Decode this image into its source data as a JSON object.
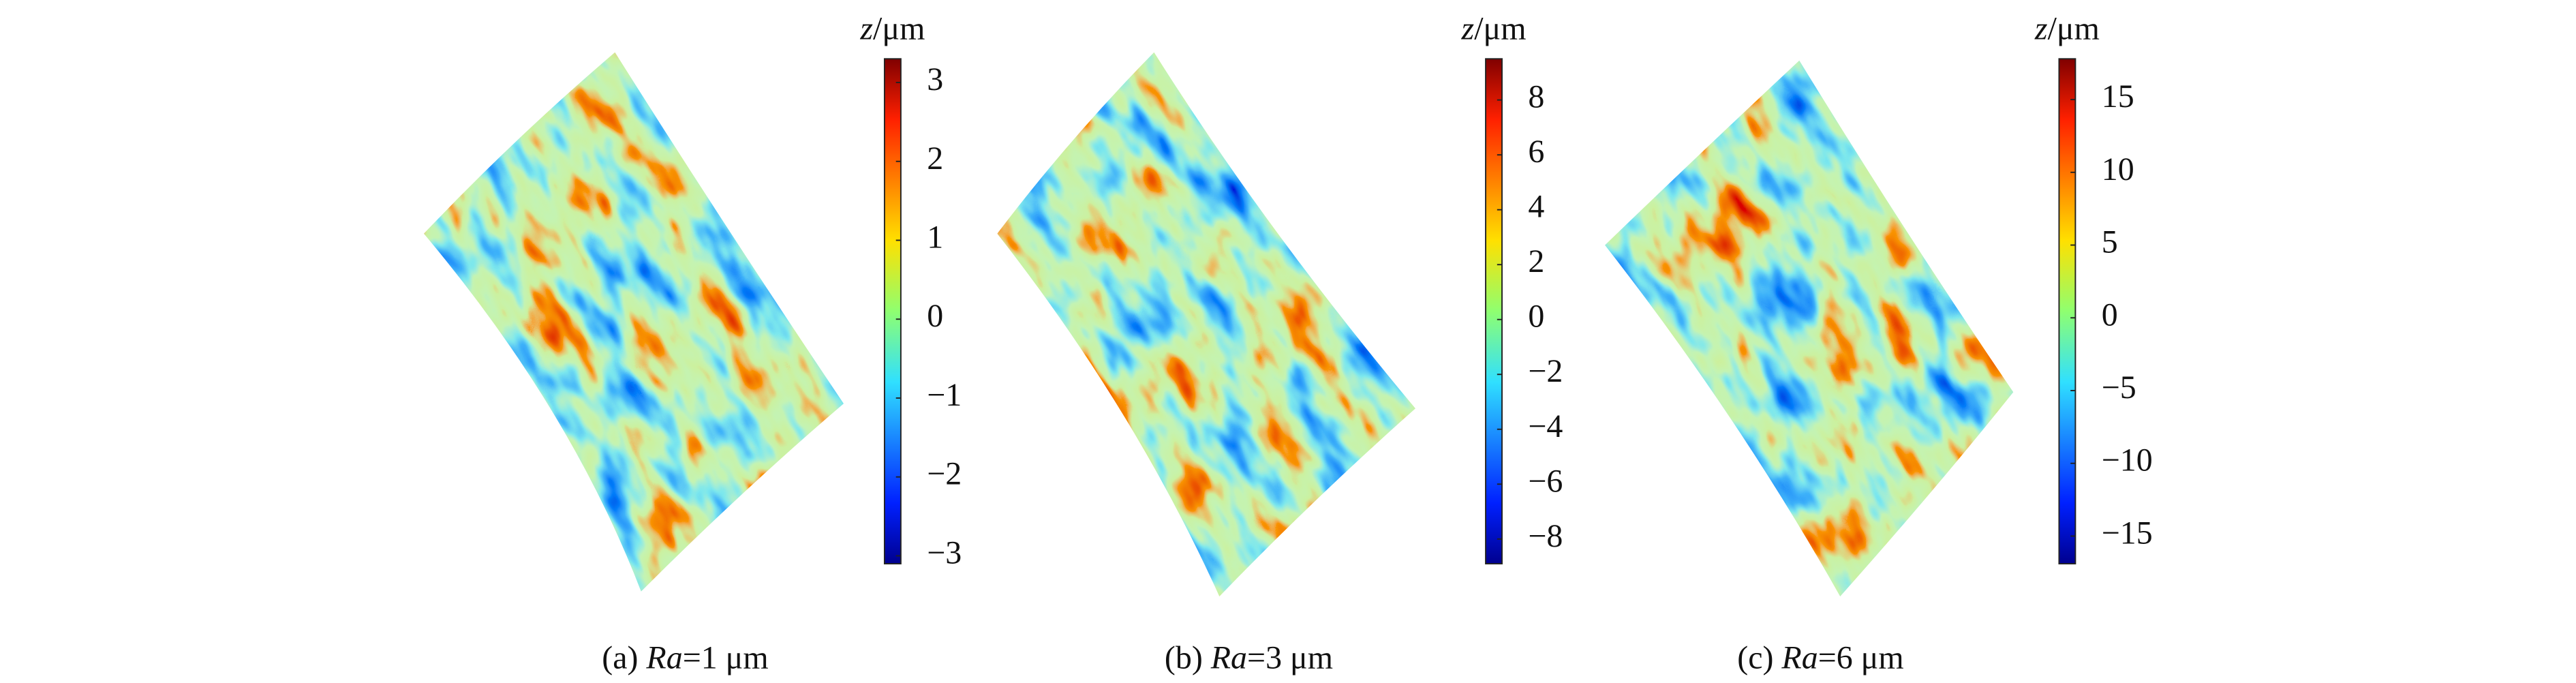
{
  "chart_data": [
    {
      "type": "surface",
      "colorbar_label": {
        "var": "z",
        "unit": "/μm"
      },
      "zlim": [
        -3.1,
        3.3
      ],
      "zticks": [
        {
          "value": -3,
          "label": "−3"
        },
        {
          "value": -2,
          "label": "−2"
        },
        {
          "value": -1,
          "label": "−1"
        },
        0,
        1,
        2,
        3
      ],
      "caption": {
        "prefix": "(a)",
        "var": "Ra",
        "value": "=1 μm"
      }
    },
    {
      "type": "surface",
      "colorbar_label": {
        "var": "z",
        "unit": "/μm"
      },
      "zlim": [
        -8.9,
        9.5
      ],
      "zticks": [
        {
          "value": -8,
          "label": "−8"
        },
        {
          "value": -6,
          "label": "−6"
        },
        {
          "value": -4,
          "label": "−4"
        },
        {
          "value": -2,
          "label": "−2"
        },
        0,
        2,
        4,
        6,
        8
      ],
      "caption": {
        "prefix": "(b)",
        "var": "Ra",
        "value": "=3 μm"
      }
    },
    {
      "type": "surface",
      "colorbar_label": {
        "var": "z",
        "unit": "/μm"
      },
      "zlim": [
        -16.9,
        17.8
      ],
      "zticks": [
        {
          "value": -15,
          "label": "−15"
        },
        {
          "value": -10,
          "label": "−10"
        },
        {
          "value": -5,
          "label": "−5"
        },
        0,
        5,
        10,
        15
      ],
      "caption": {
        "prefix": "(c)",
        "var": "Ra",
        "value": "=6 μm"
      }
    }
  ]
}
